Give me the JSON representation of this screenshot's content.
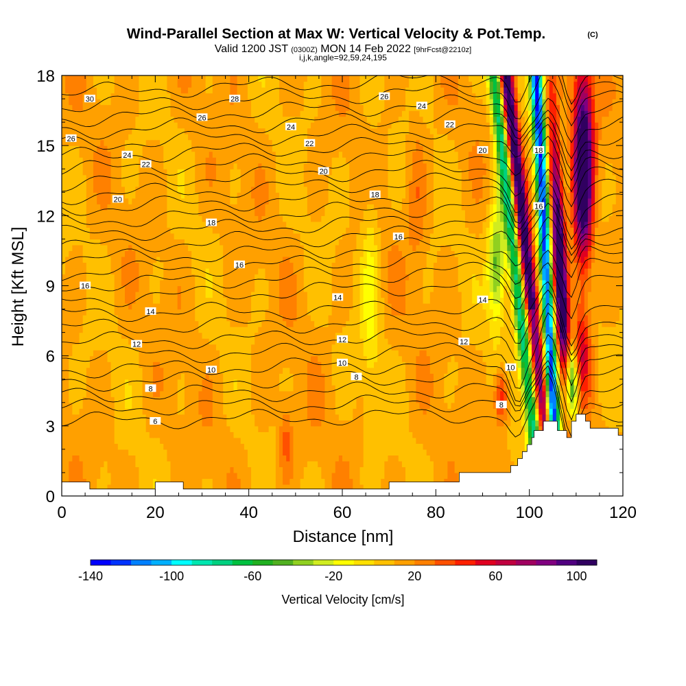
{
  "chart_data": {
    "type": "heatmap",
    "title": "Wind-Parallel Section at Max W: Vertical Velocity & Pot.Temp.",
    "title_mark": "(C)",
    "subtitle": {
      "prefix": "Valid 1200 JST ",
      "zulu": "(0300Z)",
      "date": " MON 14 Feb 2022 ",
      "forecast": "[9hrFcst@2210z]"
    },
    "section_params": "i,j,k,angle=92,59,24,195",
    "xlabel": "Distance [nm]",
    "ylabel": "Height [Kft MSL]",
    "xlim": [
      0,
      120
    ],
    "ylim": [
      0,
      18
    ],
    "x_ticks": [
      "0",
      "20",
      "40",
      "60",
      "80",
      "100",
      "120"
    ],
    "y_ticks": [
      "0",
      "3",
      "6",
      "9",
      "12",
      "15",
      "18"
    ],
    "colorbar": {
      "title": "Vertical Velocity [cm/s]",
      "range": [
        -140,
        110
      ],
      "step": 10,
      "tick_labels": [
        "-140",
        "-100",
        "-60",
        "-20",
        "20",
        "60",
        "100"
      ],
      "colors": [
        "#0000ff",
        "#0033ff",
        "#0080ff",
        "#00b0ff",
        "#00ffff",
        "#00e6b0",
        "#00d080",
        "#00c040",
        "#20b020",
        "#50b020",
        "#90d020",
        "#d0ec20",
        "#ffff00",
        "#ffe000",
        "#ffc000",
        "#ffa000",
        "#ff8000",
        "#ff5000",
        "#ff2000",
        "#e00020",
        "#c00040",
        "#a00060",
        "#800080",
        "#500080",
        "#300060"
      ]
    },
    "field_description": "Shaded vertical velocity; black contours of potential temperature (C) in 2-degree steps; terrain masked in white at the bottom",
    "contour_labels": [
      {
        "text": "6",
        "x": 20,
        "y": 3.2
      },
      {
        "text": "8",
        "x": 19,
        "y": 4.6
      },
      {
        "text": "8",
        "x": 63,
        "y": 5.1
      },
      {
        "text": "8",
        "x": 94,
        "y": 3.9
      },
      {
        "text": "10",
        "x": 32,
        "y": 5.4
      },
      {
        "text": "10",
        "x": 60,
        "y": 5.7
      },
      {
        "text": "10",
        "x": 96,
        "y": 5.5
      },
      {
        "text": "12",
        "x": 16,
        "y": 6.5
      },
      {
        "text": "12",
        "x": 60,
        "y": 6.7
      },
      {
        "text": "12",
        "x": 86,
        "y": 6.6
      },
      {
        "text": "14",
        "x": 19,
        "y": 7.9
      },
      {
        "text": "14",
        "x": 59,
        "y": 8.5
      },
      {
        "text": "14",
        "x": 90,
        "y": 8.4
      },
      {
        "text": "16",
        "x": 5,
        "y": 9.0
      },
      {
        "text": "16",
        "x": 38,
        "y": 9.9
      },
      {
        "text": "16",
        "x": 72,
        "y": 11.1
      },
      {
        "text": "16",
        "x": 102,
        "y": 12.4
      },
      {
        "text": "18",
        "x": 32,
        "y": 11.7
      },
      {
        "text": "18",
        "x": 67,
        "y": 12.9
      },
      {
        "text": "18",
        "x": 102,
        "y": 14.8
      },
      {
        "text": "20",
        "x": 12,
        "y": 12.7
      },
      {
        "text": "20",
        "x": 56,
        "y": 13.9
      },
      {
        "text": "20",
        "x": 90,
        "y": 14.8
      },
      {
        "text": "22",
        "x": 18,
        "y": 14.2
      },
      {
        "text": "22",
        "x": 53,
        "y": 15.1
      },
      {
        "text": "22",
        "x": 83,
        "y": 15.9
      },
      {
        "text": "24",
        "x": 14,
        "y": 14.6
      },
      {
        "text": "24",
        "x": 49,
        "y": 15.8
      },
      {
        "text": "24",
        "x": 77,
        "y": 16.7
      },
      {
        "text": "26",
        "x": 2,
        "y": 15.3
      },
      {
        "text": "26",
        "x": 30,
        "y": 16.2
      },
      {
        "text": "26",
        "x": 69,
        "y": 17.1
      },
      {
        "text": "28",
        "x": 37,
        "y": 17.0
      },
      {
        "text": "30",
        "x": 6,
        "y": 17.0
      }
    ]
  }
}
